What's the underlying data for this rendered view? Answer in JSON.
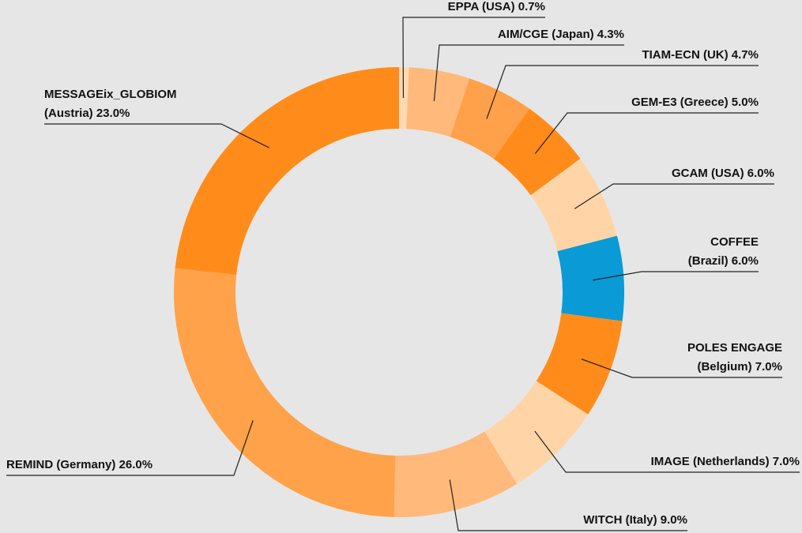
{
  "chart_data": {
    "type": "donut",
    "categories": [
      "EPPA (USA)",
      "AIM/CGE (Japan)",
      "TIAM-ECN (UK)",
      "GEM-E3 (Greece)",
      "GCAM (USA)",
      "COFFEE (Brazil)",
      "POLES ENGAGE (Belgium)",
      "IMAGE (Netherlands)",
      "WITCH (Italy)",
      "REMIND (Germany)",
      "MESSAGEix_GLOBIOM (Austria)"
    ],
    "values": [
      0.7,
      4.3,
      4.7,
      5.0,
      6.0,
      6.0,
      7.0,
      7.0,
      9.0,
      26.0,
      23.0
    ],
    "value_labels": [
      "0.7%",
      "4.3%",
      "4.7%",
      "5.0%",
      "6.0%",
      "6.0%",
      "7.0%",
      "7.0%",
      "9.0%",
      "26.0%",
      "23.0%"
    ],
    "colors": [
      "#ffd9b3",
      "#ffb97a",
      "#ffa04a",
      "#ff8c1a",
      "#ffd5a8",
      "#0a9ad6",
      "#ff8c1a",
      "#ffd5a8",
      "#ffb97a",
      "#ffa24a",
      "#ff8c1a"
    ]
  }
}
